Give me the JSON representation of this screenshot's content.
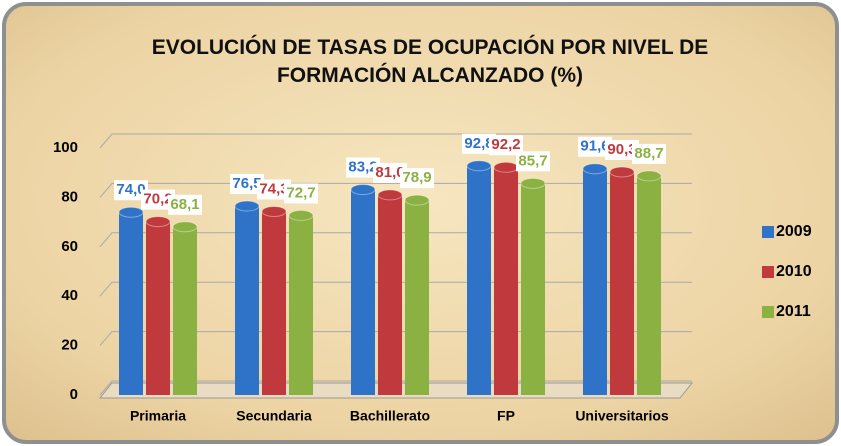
{
  "chart_data": {
    "type": "bar",
    "title": "EVOLUCIÓN DE TASAS DE OCUPACIÓN POR NIVEL DE FORMACIÓN ALCANZADO (%)",
    "categories": [
      "Primaria",
      "Secundaria",
      "Bachillerato",
      "FP",
      "Universitarios"
    ],
    "series": [
      {
        "name": "2009",
        "color": "#2f73c8",
        "values": [
          74.0,
          76.5,
          83.2,
          92.8,
          91.6
        ],
        "value_labels": [
          "74,0",
          "76,5",
          "83,2",
          "92,8",
          "91,6"
        ]
      },
      {
        "name": "2010",
        "color": "#c0393c",
        "values": [
          70.2,
          74.3,
          81.0,
          92.2,
          90.3
        ],
        "value_labels": [
          "70,2",
          "74,3",
          "81,0",
          "92,2",
          "90,3"
        ]
      },
      {
        "name": "2011",
        "color": "#8cb143",
        "values": [
          68.1,
          72.7,
          78.9,
          85.7,
          88.7
        ],
        "value_labels": [
          "68,1",
          "72,7",
          "78,9",
          "85,7",
          "88,7"
        ]
      }
    ],
    "ylim": [
      0,
      100
    ],
    "yticks": [
      0,
      20,
      40,
      60,
      80,
      100
    ],
    "grid": true,
    "legend": "right"
  }
}
